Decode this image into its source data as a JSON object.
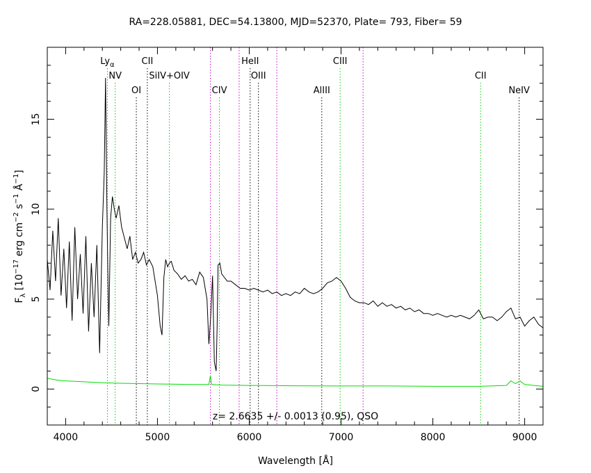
{
  "chart_data": {
    "type": "line",
    "title": "RA=228.05881, DEC=54.13800, MJD=52370, Plate=  793, Fiber=  59",
    "xlabel": "Wavelength [Å]",
    "ylabel": "F_λ [10^-17 erg cm^-2 s^-1 Å^-1]",
    "xlim": [
      3800,
      9200
    ],
    "ylim": [
      -2,
      19
    ],
    "x_ticks": [
      4000,
      5000,
      6000,
      7000,
      8000,
      9000
    ],
    "y_ticks": [
      0,
      5,
      10,
      15
    ],
    "annotation": "z=  2.6635 +/-  0.0013 (0.95), QSO",
    "grid": false,
    "colors": {
      "flux": "#000000",
      "error": "#00dd00",
      "qso_lines": "#00cc00",
      "abs_lines": "#000000",
      "sky_lines": "#cc00cc"
    },
    "series": [
      {
        "key": "flux",
        "x": [
          3800,
          3830,
          3860,
          3890,
          3920,
          3950,
          3980,
          4010,
          4040,
          4070,
          4100,
          4130,
          4160,
          4190,
          4220,
          4250,
          4280,
          4310,
          4340,
          4370,
          4400,
          4420,
          4435,
          4450,
          4460,
          4470,
          4490,
          4510,
          4530,
          4550,
          4580,
          4610,
          4640,
          4670,
          4700,
          4730,
          4760,
          4790,
          4820,
          4850,
          4880,
          4910,
          4950,
          5000,
          5030,
          5050,
          5070,
          5090,
          5110,
          5130,
          5150,
          5180,
          5220,
          5260,
          5300,
          5340,
          5380,
          5420,
          5460,
          5500,
          5540,
          5560,
          5580,
          5600,
          5620,
          5640,
          5650,
          5660,
          5680,
          5700,
          5730,
          5760,
          5800,
          5850,
          5900,
          5950,
          6000,
          6050,
          6100,
          6150,
          6200,
          6250,
          6300,
          6350,
          6400,
          6450,
          6500,
          6550,
          6600,
          6650,
          6700,
          6750,
          6800,
          6850,
          6900,
          6950,
          7000,
          7050,
          7100,
          7150,
          7200,
          7250,
          7300,
          7350,
          7400,
          7450,
          7500,
          7550,
          7600,
          7650,
          7700,
          7750,
          7800,
          7850,
          7900,
          7950,
          8000,
          8050,
          8100,
          8150,
          8200,
          8250,
          8300,
          8350,
          8400,
          8450,
          8500,
          8550,
          8600,
          8650,
          8700,
          8750,
          8800,
          8850,
          8900,
          8950,
          9000,
          9050,
          9100,
          9150,
          9200
        ],
        "y": [
          7.2,
          5.5,
          8.8,
          6.0,
          9.5,
          5.2,
          7.8,
          4.5,
          8.2,
          3.8,
          9.0,
          5.0,
          7.5,
          4.2,
          8.5,
          3.2,
          7.0,
          4.0,
          8.0,
          2.0,
          9.0,
          12.0,
          17.3,
          10.0,
          6.5,
          3.5,
          9.5,
          10.7,
          10.0,
          9.5,
          10.2,
          9.0,
          8.4,
          7.8,
          8.5,
          7.2,
          7.6,
          7.0,
          7.2,
          7.6,
          6.9,
          7.2,
          6.8,
          5.2,
          3.5,
          3.0,
          6.2,
          7.2,
          6.8,
          7.0,
          7.1,
          6.6,
          6.4,
          6.1,
          6.3,
          6.0,
          6.1,
          5.8,
          6.5,
          6.2,
          5.0,
          2.5,
          4.0,
          6.3,
          1.5,
          1.0,
          3.5,
          6.9,
          7.0,
          6.4,
          6.2,
          6.0,
          6.0,
          5.8,
          5.6,
          5.6,
          5.5,
          5.6,
          5.5,
          5.4,
          5.5,
          5.3,
          5.4,
          5.2,
          5.3,
          5.2,
          5.4,
          5.3,
          5.6,
          5.4,
          5.3,
          5.4,
          5.6,
          5.9,
          6.0,
          6.2,
          6.0,
          5.6,
          5.1,
          4.9,
          4.8,
          4.8,
          4.7,
          4.9,
          4.6,
          4.8,
          4.6,
          4.7,
          4.5,
          4.6,
          4.4,
          4.5,
          4.3,
          4.4,
          4.2,
          4.2,
          4.1,
          4.2,
          4.1,
          4.0,
          4.1,
          4.0,
          4.1,
          4.0,
          3.9,
          4.1,
          4.4,
          3.9,
          4.0,
          4.0,
          3.8,
          4.0,
          4.3,
          4.5,
          3.9,
          4.0,
          3.5,
          3.8,
          4.0,
          3.6,
          3.4
        ]
      },
      {
        "key": "error",
        "x": [
          3800,
          3900,
          4000,
          4200,
          4400,
          4600,
          5000,
          5400,
          5560,
          5577,
          5590,
          5700,
          6000,
          6500,
          7000,
          7500,
          8000,
          8500,
          8800,
          8850,
          8900,
          8950,
          9000,
          9100,
          9200
        ],
        "y": [
          0.6,
          0.5,
          0.45,
          0.4,
          0.35,
          0.32,
          0.28,
          0.25,
          0.25,
          0.75,
          0.25,
          0.22,
          0.2,
          0.18,
          0.17,
          0.17,
          0.15,
          0.15,
          0.2,
          0.45,
          0.3,
          0.45,
          0.25,
          0.2,
          0.15
        ]
      }
    ],
    "line_markers": [
      {
        "label": "Lyα",
        "x": 4455,
        "color_key": "qso_lines",
        "row": 0
      },
      {
        "label": "NV",
        "x": 4540,
        "color_key": "qso_lines",
        "row": 1
      },
      {
        "label": "OI",
        "x": 4770,
        "color_key": "abs_lines",
        "row": 2
      },
      {
        "label": "CII",
        "x": 4890,
        "color_key": "abs_lines",
        "row": 0
      },
      {
        "label": "SiIV+OIV",
        "x": 5130,
        "color_key": "qso_lines",
        "row": 1
      },
      {
        "label": "",
        "x": 5577,
        "color_key": "sky_lines",
        "row": -1
      },
      {
        "label": "CIV",
        "x": 5675,
        "color_key": "qso_lines",
        "row": 2
      },
      {
        "label": "",
        "x": 5890,
        "color_key": "sky_lines",
        "row": -1
      },
      {
        "label": "HeII",
        "x": 6010,
        "color_key": "abs_lines",
        "row": 0
      },
      {
        "label": "OIII",
        "x": 6100,
        "color_key": "abs_lines",
        "row": 1
      },
      {
        "label": "",
        "x": 6300,
        "color_key": "sky_lines",
        "row": -1
      },
      {
        "label": "AlIII",
        "x": 6790,
        "color_key": "abs_lines",
        "row": 2
      },
      {
        "label": "CIII",
        "x": 6990,
        "color_key": "qso_lines",
        "row": 0
      },
      {
        "label": "",
        "x": 7240,
        "color_key": "sky_lines",
        "row": -1
      },
      {
        "label": "CII",
        "x": 8520,
        "color_key": "qso_lines",
        "row": 1
      },
      {
        "label": "NeIV",
        "x": 8940,
        "color_key": "abs_lines",
        "row": 2
      }
    ]
  }
}
